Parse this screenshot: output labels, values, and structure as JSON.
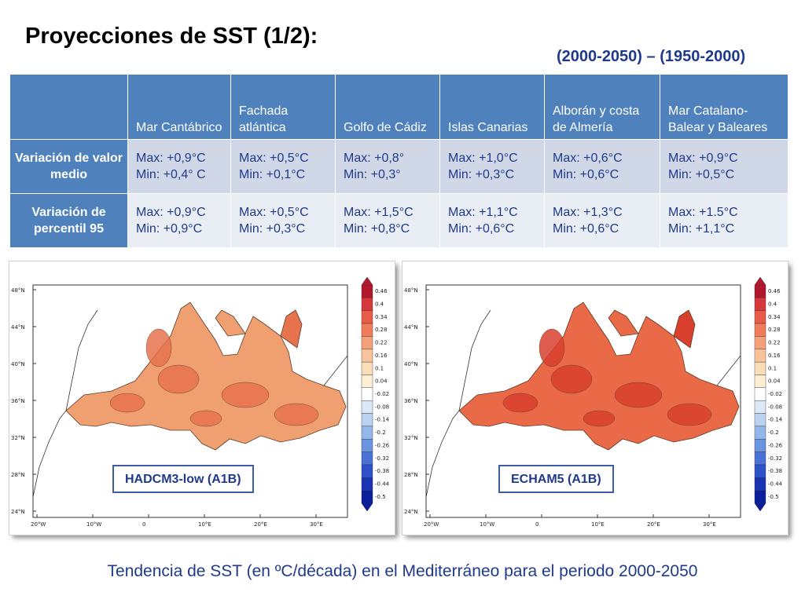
{
  "slide": {
    "title": "Proyecciones de SST (1/2):",
    "period": "(2000-2050) – (1950-2000)",
    "caption": "Tendencia de SST (en ºC/década) en el Mediterráneo para el periodo 2000-2050"
  },
  "table": {
    "columns": [
      "",
      "Mar Cantábrico",
      "Fachada atlántica",
      "Golfo de Cádiz",
      "Islas Canarias",
      "Alborán y costa de Almería",
      "Mar Catalano-Balear y Baleares"
    ],
    "rows": [
      {
        "label": "Variación de valor medio",
        "cells": [
          {
            "max": "Max: +0,9°C",
            "min": "Min: +0,4° C"
          },
          {
            "max": "Max: +0,5°C",
            "min": "Min: +0,1°C"
          },
          {
            "max": "Max: +0,8°",
            "min": "Min: +0,3°"
          },
          {
            "max": "Max: +1,0°C",
            "min": "Min: +0,3°C"
          },
          {
            "max": "Max: +0,6°C",
            "min": "Min: +0,6°C"
          },
          {
            "max": "Max: +0,9°C",
            "min": "Min: +0,5°C"
          }
        ]
      },
      {
        "label": "Variación de percentil 95",
        "cells": [
          {
            "max": "Max: +0,9°C",
            "min": "Min: +0,9°C"
          },
          {
            "max": "Max: +0,5°C",
            "min": "Min: +0,3°C"
          },
          {
            "max": "Max: +1,5°C",
            "min": "Min: +0,8°C"
          },
          {
            "max": "Max: +1,1°C",
            "min": "Min: +0,6°C"
          },
          {
            "max": "Max: +1,3°C",
            "min": "Min: +0,6°C"
          },
          {
            "max": "Max: +1.5°C",
            "min": "Min: +1,1°C"
          }
        ]
      }
    ]
  },
  "maps": {
    "lat_labels": [
      "48°N",
      "44°N",
      "40°N",
      "36°N",
      "32°N",
      "28°N",
      "24°N"
    ],
    "lon_labels": [
      "20°W",
      "10°W",
      "0",
      "10°E",
      "20°E",
      "30°E"
    ],
    "colorbar_ticks": [
      "0.46",
      "0.4",
      "0.34",
      "0.28",
      "0.22",
      "0.16",
      "0.1",
      "0.04",
      "-0.02",
      "-0.08",
      "-0.14",
      "-0.2",
      "-0.26",
      "-0.32",
      "-0.38",
      "-0.44",
      "-0.5"
    ],
    "panels": [
      {
        "label": "HADCM3-low (A1B)",
        "sea_color": "#f0a070",
        "hot_color": "#e7734e"
      },
      {
        "label": "ECHAM5 (A1B)",
        "sea_color": "#ea6a48",
        "hot_color": "#d9402e"
      }
    ]
  }
}
